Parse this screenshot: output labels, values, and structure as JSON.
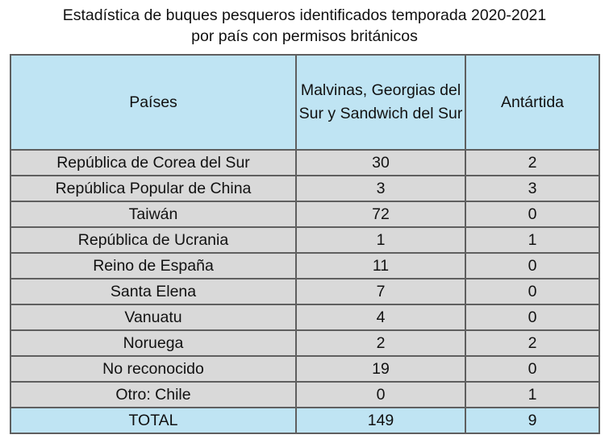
{
  "title": {
    "line1": "Estadística de buques pesqueros identificados temporada 2020-2021",
    "line2": "por país con permisos británicos"
  },
  "table": {
    "headers": {
      "country": "Países",
      "malvinas": "Malvinas, Georgias del Sur y Sandwich del Sur",
      "antartida": "Antártida"
    },
    "total_row": {
      "label": "TOTAL",
      "malvinas": "149",
      "antartida": "9"
    }
  },
  "colors": {
    "header_bg": "#bfe4f3",
    "body_bg": "#d9d9d9",
    "border": "#5f5f5f"
  },
  "chart_data": {
    "type": "table",
    "title": "Estadística de buques pesqueros identificados temporada 2020-2021 por país con permisos británicos",
    "columns": [
      "Países",
      "Malvinas, Georgias del Sur y Sandwich del Sur",
      "Antártida"
    ],
    "categories": [
      "República de Corea del Sur",
      "República Popular de China",
      "Taiwán",
      "República de Ucrania",
      "Reino de España",
      "Santa Elena",
      "Vanuatu",
      "Noruega",
      "No reconocido",
      "Otro: Chile"
    ],
    "series": [
      {
        "name": "Malvinas, Georgias del Sur y Sandwich del Sur",
        "values": [
          30,
          3,
          72,
          1,
          11,
          7,
          4,
          2,
          19,
          0
        ]
      },
      {
        "name": "Antártida",
        "values": [
          2,
          3,
          0,
          1,
          0,
          0,
          0,
          2,
          0,
          1
        ]
      }
    ],
    "totals": {
      "label": "TOTAL",
      "values": [
        149,
        9
      ]
    }
  }
}
